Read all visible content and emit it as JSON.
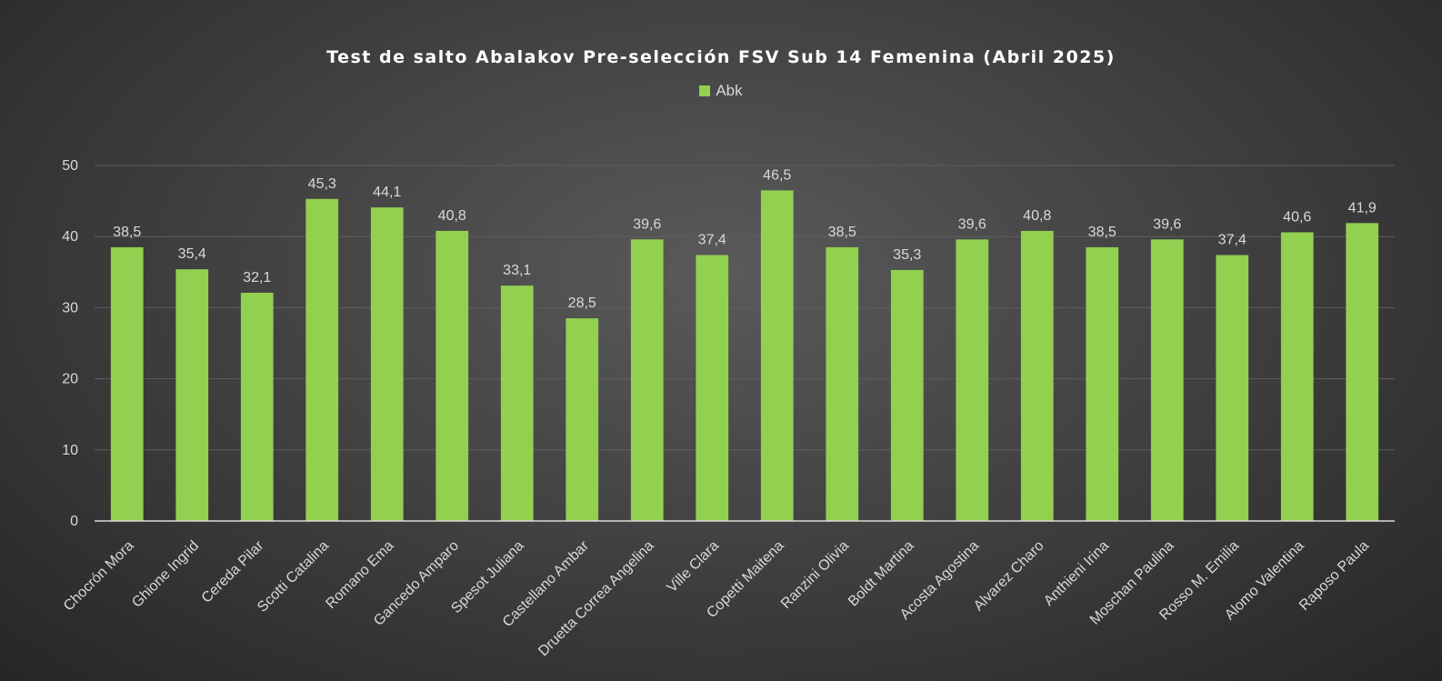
{
  "chart_data": {
    "type": "bar",
    "title": "Test de salto Abalakov Pre-selección FSV Sub 14 Femenina (Abril 2025)",
    "categories": [
      "Chocrón Mora",
      "Ghione Ingrid",
      "Cereda Pilar",
      "Scotti Catalina",
      "Romano Ema",
      "Gancedo Amparo",
      "Spesot Juliana",
      "Castellano Ambar",
      "Druetta Correa Angelina",
      "Ville Clara",
      "Copetti Maitena",
      "Ranzini Olivia",
      "Boldt Martina",
      "Acosta Agostina",
      "Alvarez Charo",
      "Anthieni Irina",
      "Moschan Paulina",
      "Rosso M. Emilia",
      "Alomo Valentina",
      "Raposo Paula"
    ],
    "series": [
      {
        "name": "Abk",
        "values": [
          38.5,
          35.4,
          32.1,
          45.3,
          44.1,
          40.8,
          33.1,
          28.5,
          39.6,
          37.4,
          46.5,
          38.5,
          35.3,
          39.6,
          40.8,
          38.5,
          39.6,
          37.4,
          40.6,
          41.9
        ],
        "labels": [
          "38,5",
          "35,4",
          "32,1",
          "45,3",
          "44,1",
          "40,8",
          "33,1",
          "28,5",
          "39,6",
          "37,4",
          "46,5",
          "38,5",
          "35,3",
          "39,6",
          "40,8",
          "38,5",
          "39,6",
          "37,4",
          "40,6",
          "41,9"
        ],
        "color": "#92d050"
      }
    ],
    "ylim": [
      0,
      50
    ],
    "yticks": [
      "0",
      "10",
      "20",
      "30",
      "40",
      "50"
    ],
    "grid": true,
    "legend_position": "top-center",
    "xlabel": "",
    "ylabel": ""
  },
  "colors": {
    "gridline": "#5e5e5e",
    "axis": "#d9d9d9"
  }
}
